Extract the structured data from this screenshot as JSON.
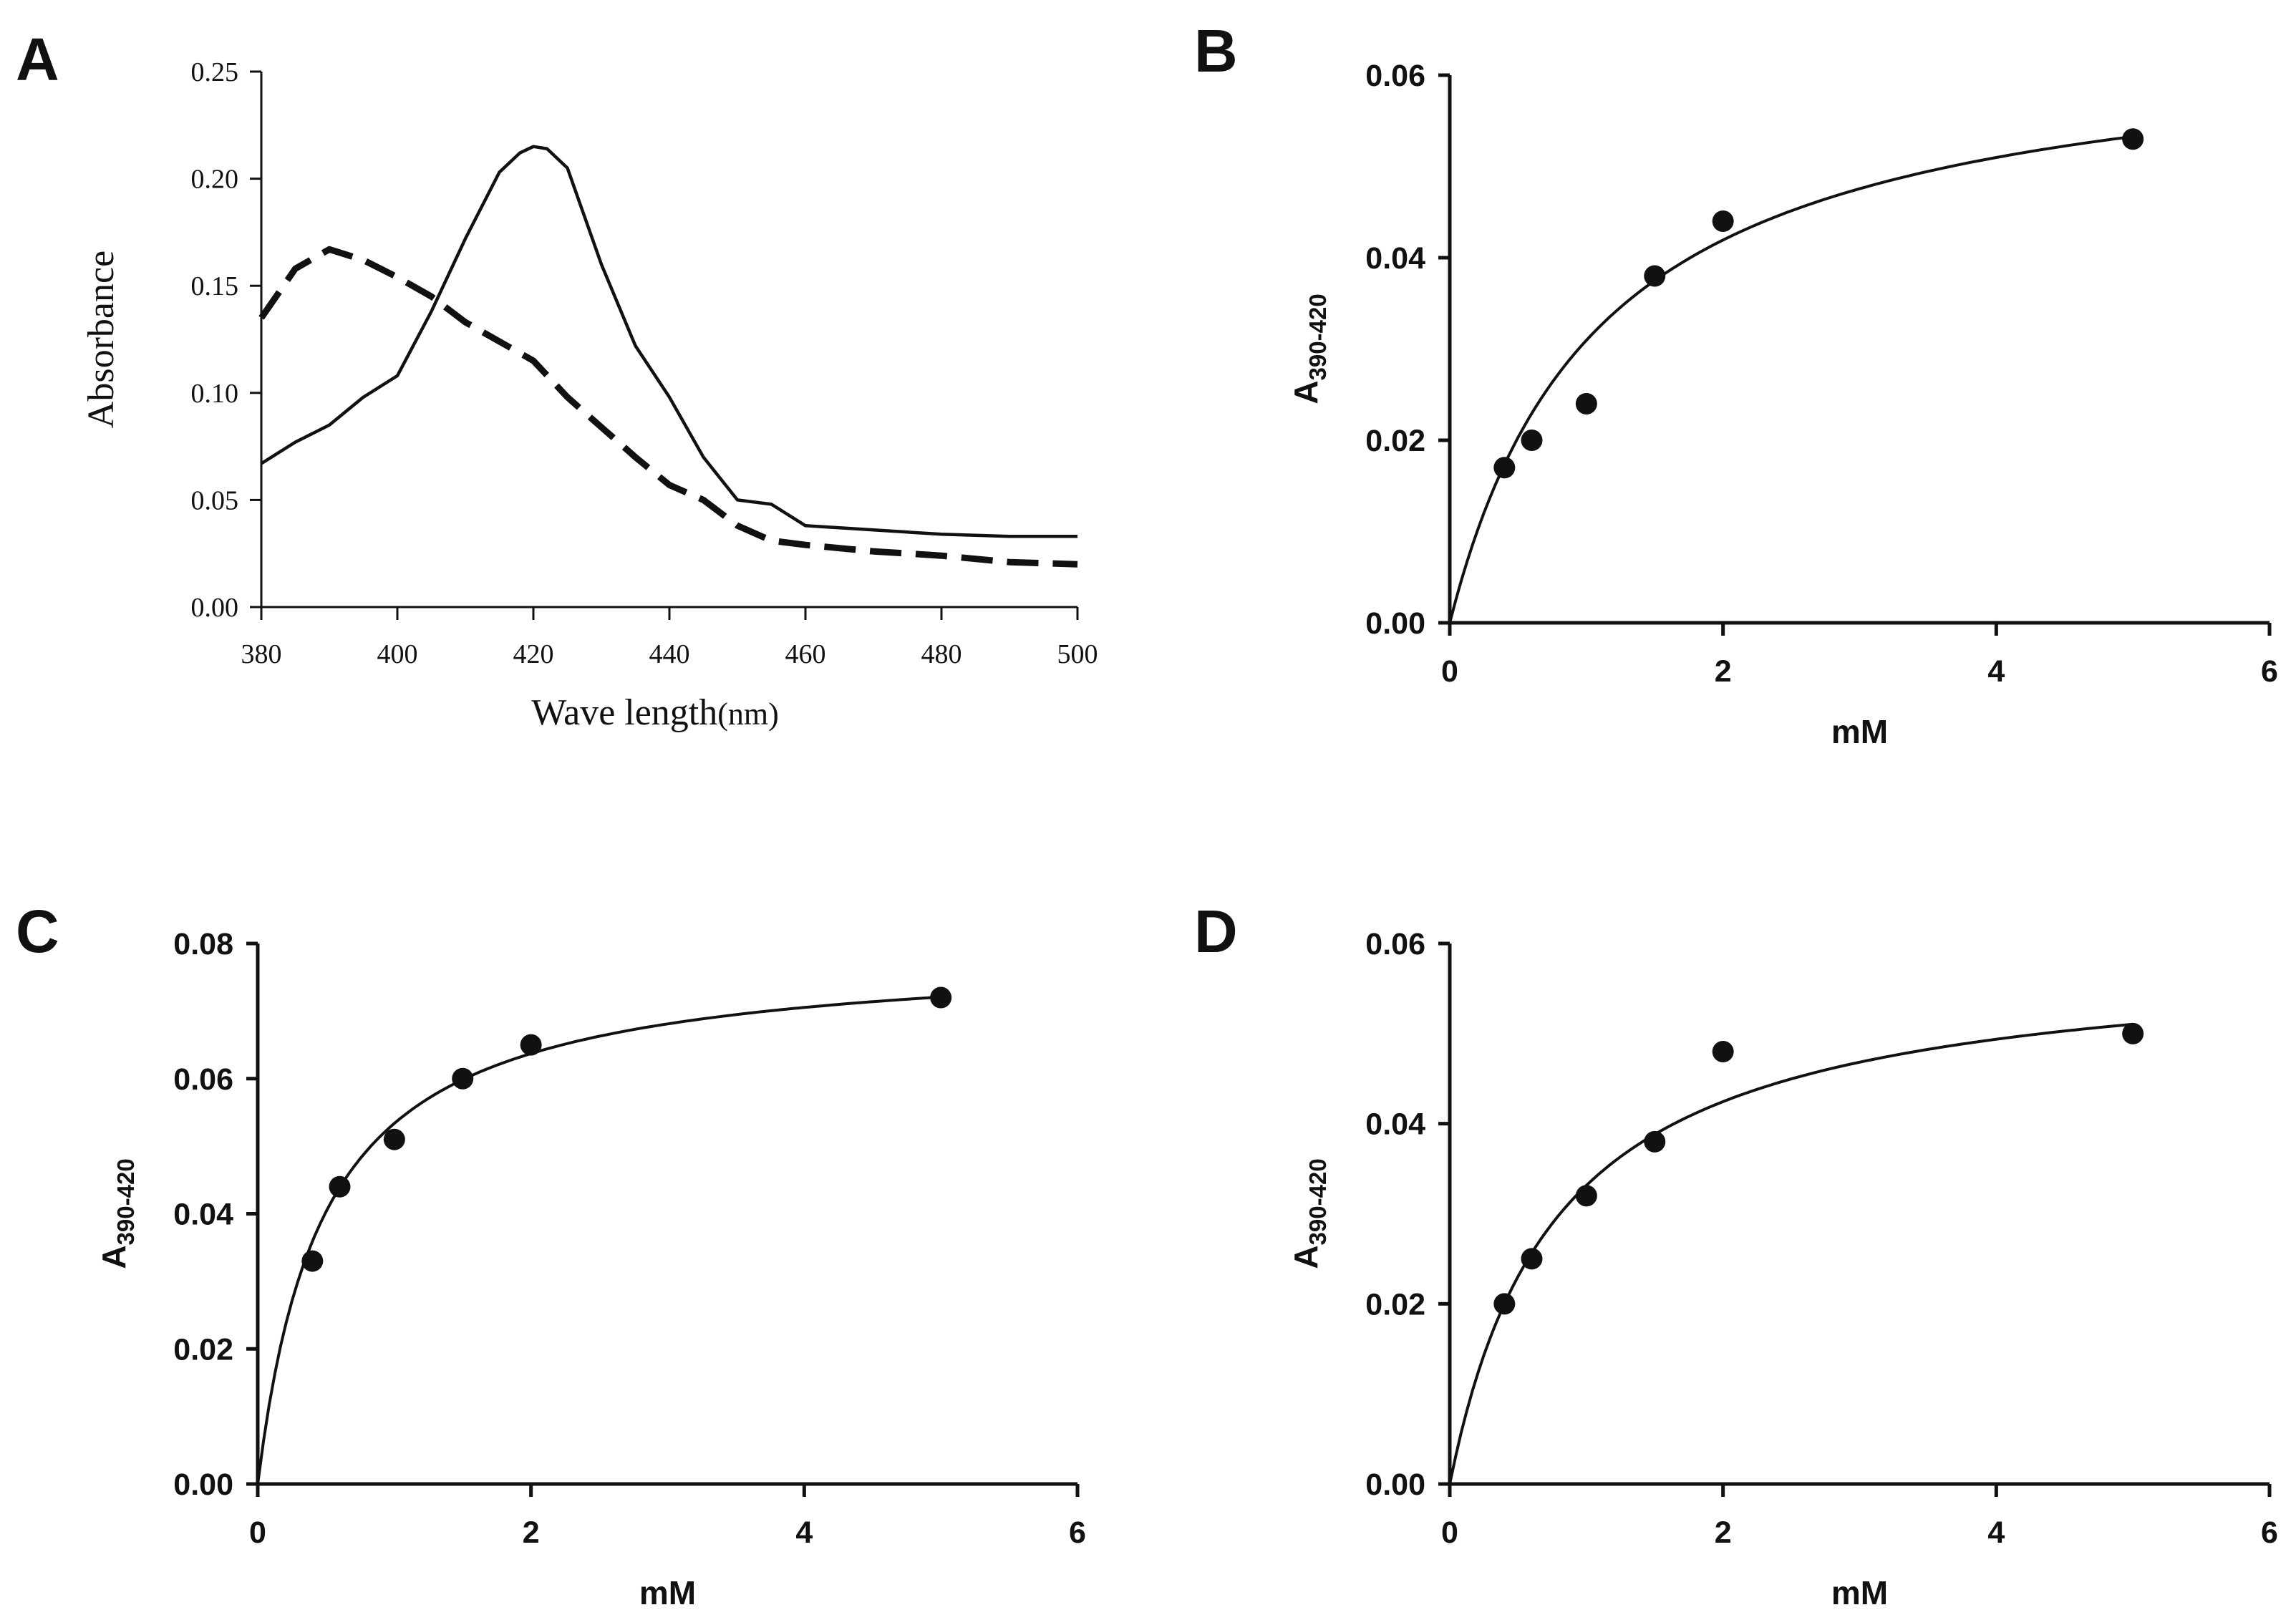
{
  "chart_data": [
    {
      "panel": "A",
      "type": "line",
      "title": "",
      "xlabel_main": "Wave length",
      "xlabel_unit": "(nm)",
      "ylabel": "Absorbance",
      "xlim": [
        380,
        500
      ],
      "ylim": [
        0,
        0.25
      ],
      "xticks": [
        "380",
        "400",
        "420",
        "440",
        "460",
        "480",
        "500"
      ],
      "yticks": [
        "0.00",
        "0.05",
        "0.10",
        "0.15",
        "0.20",
        "0.25"
      ],
      "series": [
        {
          "name": "solid",
          "style": "solid",
          "x": [
            380,
            385,
            390,
            395,
            400,
            405,
            410,
            415,
            418,
            420,
            422,
            425,
            430,
            435,
            440,
            445,
            450,
            455,
            460,
            465,
            470,
            475,
            480,
            490,
            500
          ],
          "y": [
            0.067,
            0.077,
            0.085,
            0.098,
            0.108,
            0.138,
            0.172,
            0.203,
            0.212,
            0.215,
            0.214,
            0.205,
            0.16,
            0.122,
            0.098,
            0.07,
            0.05,
            0.048,
            0.038,
            0.037,
            0.036,
            0.035,
            0.034,
            0.033,
            0.033
          ]
        },
        {
          "name": "dashed",
          "style": "dashed",
          "x": [
            380,
            385,
            390,
            395,
            400,
            405,
            410,
            415,
            420,
            425,
            430,
            435,
            440,
            445,
            450,
            455,
            460,
            470,
            480,
            490,
            500
          ],
          "y": [
            0.135,
            0.158,
            0.167,
            0.162,
            0.154,
            0.145,
            0.133,
            0.124,
            0.115,
            0.098,
            0.084,
            0.07,
            0.057,
            0.05,
            0.038,
            0.031,
            0.029,
            0.026,
            0.024,
            0.021,
            0.02
          ]
        }
      ]
    },
    {
      "panel": "B",
      "type": "scatter",
      "title": "",
      "xlabel": "mM",
      "ylabel_main": "A",
      "ylabel_sub": "390-420",
      "xlim": [
        0,
        6
      ],
      "ylim": [
        0,
        0.06
      ],
      "xticks": [
        "0",
        "2",
        "4",
        "6"
      ],
      "yticks": [
        "0.00",
        "0.02",
        "0.04",
        "0.06"
      ],
      "points": {
        "x": [
          0.4,
          0.6,
          1.0,
          1.5,
          2.0,
          5.0
        ],
        "y": [
          0.017,
          0.02,
          0.024,
          0.038,
          0.044,
          0.053
        ]
      },
      "fit": {
        "model": "hyperbolic",
        "vmax": 0.065,
        "km": 1.1
      }
    },
    {
      "panel": "C",
      "type": "scatter",
      "title": "",
      "xlabel": "mM",
      "ylabel_main": "A",
      "ylabel_sub": "390-420",
      "xlim": [
        0,
        6
      ],
      "ylim": [
        0,
        0.08
      ],
      "xticks": [
        "0",
        "2",
        "4",
        "6"
      ],
      "yticks": [
        "0.00",
        "0.02",
        "0.04",
        "0.06",
        "0.08"
      ],
      "points": {
        "x": [
          0.4,
          0.6,
          1.0,
          1.5,
          2.0,
          5.0
        ],
        "y": [
          0.033,
          0.044,
          0.051,
          0.06,
          0.065,
          0.072
        ]
      },
      "fit": {
        "model": "hyperbolic",
        "vmax": 0.079,
        "km": 0.48
      }
    },
    {
      "panel": "D",
      "type": "scatter",
      "title": "",
      "xlabel": "mM",
      "ylabel_main": "A",
      "ylabel_sub": "390-420",
      "xlim": [
        0,
        6
      ],
      "ylim": [
        0,
        0.06
      ],
      "xticks": [
        "0",
        "2",
        "4",
        "6"
      ],
      "yticks": [
        "0.00",
        "0.02",
        "0.04",
        "0.06"
      ],
      "points": {
        "x": [
          0.4,
          0.6,
          1.0,
          1.5,
          2.0,
          5.0
        ],
        "y": [
          0.02,
          0.025,
          0.032,
          0.038,
          0.048,
          0.05
        ]
      },
      "fit": {
        "model": "hyperbolic",
        "vmax": 0.059,
        "km": 0.78
      }
    }
  ]
}
